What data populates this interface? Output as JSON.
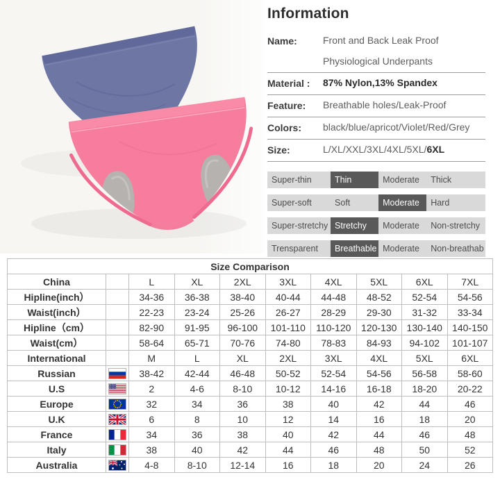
{
  "photo": {
    "background": "#f7f6f3",
    "blue_item_color": "#6e76a4",
    "blue_band_color": "#61699a",
    "pink_item_color": "#f67e9c",
    "pink_band_color": "#f98ba6",
    "pink_trim_color": "#ee6a8e",
    "lining_color": "#b5b2af"
  },
  "info": {
    "title": "Information",
    "rows": [
      {
        "label": "Name:",
        "lines": [
          "Front and Back Leak Proof",
          "Physiological Underpants"
        ]
      },
      {
        "label": "Material :",
        "value": "87% Nylon,13% Spandex",
        "bold": true
      },
      {
        "label": "Feature:",
        "value": "Breathable holes/Leak-Proof"
      },
      {
        "label": "Colors:",
        "value": "black/blue/apricot/Violet/Red/Grey"
      },
      {
        "label": "Size:",
        "value": "L/XL/XXL/3XL/4XL/5XL/",
        "bold_suffix": "6XL"
      }
    ]
  },
  "attributes": {
    "selected_bg": "#595959",
    "track_bg": "#d9d9d9",
    "rows": [
      {
        "options": [
          "Super-thin",
          "Thin",
          "Moderate",
          "Thick"
        ],
        "selected": 1
      },
      {
        "options": [
          "Super-soft",
          "Soft",
          "Moderate",
          "Hard"
        ],
        "selected": 2
      },
      {
        "options": [
          "Super-stretchy",
          "Stretchy",
          "Moderate",
          "Non-stretchy"
        ],
        "selected": 1
      },
      {
        "options": [
          "Trensparent",
          "Breathable",
          "Moderate",
          "Non-breathab"
        ],
        "selected": 1
      }
    ]
  },
  "size_table": {
    "title": "Size Comparison",
    "rows": [
      {
        "label": "China",
        "flag": "",
        "values": [
          "L",
          "XL",
          "2XL",
          "3XL",
          "4XL",
          "5XL",
          "6XL",
          "7XL"
        ]
      },
      {
        "label": "Hipline(inch）",
        "flag": "",
        "values": [
          "34-36",
          "36-38",
          "38-40",
          "40-44",
          "44-48",
          "48-52",
          "52-54",
          "54-56"
        ]
      },
      {
        "label": "Waist(inch）",
        "flag": "",
        "values": [
          "22-23",
          "23-24",
          "25-26",
          "26-27",
          "28-29",
          "29-30",
          "31-32",
          "33-34"
        ]
      },
      {
        "label": "Hipline（cm）",
        "flag": "",
        "values": [
          "82-90",
          "91-95",
          "96-100",
          "101-110",
          "110-120",
          "120-130",
          "130-140",
          "140-150"
        ]
      },
      {
        "label": "Waist(cm）",
        "flag": "",
        "values": [
          "58-64",
          "65-71",
          "70-76",
          "74-80",
          "78-83",
          "84-93",
          "94-102",
          "101-107"
        ]
      },
      {
        "label": "International",
        "flag": "",
        "values": [
          "M",
          "L",
          "XL",
          "2XL",
          "3XL",
          "4XL",
          "5XL",
          "6XL"
        ]
      },
      {
        "label": "Russian",
        "flag": "ru",
        "values": [
          "38-42",
          "42-44",
          "46-48",
          "50-52",
          "52-54",
          "54-56",
          "56-58",
          "58-60"
        ]
      },
      {
        "label": "U.S",
        "flag": "us",
        "values": [
          "2",
          "4-6",
          "8-10",
          "10-12",
          "14-16",
          "16-18",
          "18-20",
          "20-22"
        ]
      },
      {
        "label": "Europe",
        "flag": "eu",
        "values": [
          "32",
          "34",
          "36",
          "38",
          "40",
          "42",
          "44",
          "46"
        ]
      },
      {
        "label": "U.K",
        "flag": "uk",
        "values": [
          "6",
          "8",
          "10",
          "12",
          "14",
          "16",
          "18",
          "20"
        ]
      },
      {
        "label": "France",
        "flag": "fr",
        "values": [
          "34",
          "36",
          "38",
          "40",
          "42",
          "44",
          "46",
          "48"
        ]
      },
      {
        "label": "Italy",
        "flag": "it",
        "values": [
          "38",
          "40",
          "42",
          "44",
          "46",
          "48",
          "50",
          "52"
        ]
      },
      {
        "label": "Australia",
        "flag": "au",
        "values": [
          "4-8",
          "8-10",
          "12-14",
          "16",
          "18",
          "20",
          "24",
          "26"
        ]
      }
    ]
  }
}
